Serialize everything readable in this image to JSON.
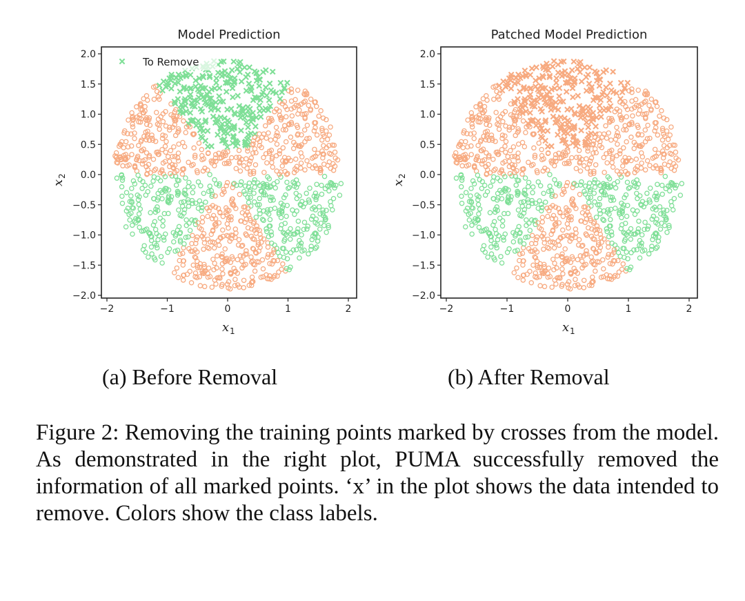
{
  "chart_data": [
    {
      "type": "scatter",
      "title": "Model Prediction",
      "xlabel": "x",
      "xlabel_sub": "1",
      "ylabel": "x",
      "ylabel_sub": "2",
      "xlim": [
        -2,
        2
      ],
      "ylim": [
        -2,
        2
      ],
      "xticks": [
        "−2",
        "−1",
        "0",
        "1",
        "2"
      ],
      "yticks": [
        "2.0",
        "1.5",
        "1.0",
        "0.5",
        "0.0",
        "−0.5",
        "−1.0",
        "−1.5",
        "−2.0"
      ],
      "legend": {
        "label": "To Remove",
        "position": "upper-left",
        "marker": "x"
      },
      "description": "Points uniformly inside a disk of radius ~1.9; class coloring by angular sectors; crosses in the top cap are the points to remove",
      "series": [
        {
          "name": "To Remove",
          "marker": "x",
          "color": "#7fdf97",
          "region": "top cap, roughly x in [-0.8, 0.9], y > 0.3 (angle 55°–130°)"
        },
        {
          "marker": "o",
          "color": "#f7aa80",
          "region": "upper sectors and bottom sector (angles 0°–55°, 130°–180°, 240°–300°)"
        },
        {
          "marker": "o",
          "color": "#7fdf97",
          "region": "lower-left and lower-right sectors (angles 180°–240°, 300°–360°)"
        }
      ]
    },
    {
      "type": "scatter",
      "title": "Patched Model Prediction",
      "xlabel": "x",
      "xlabel_sub": "1",
      "ylabel": "x",
      "ylabel_sub": "2",
      "xlim": [
        -2,
        2
      ],
      "ylim": [
        -2,
        2
      ],
      "xticks": [
        "−2",
        "−1",
        "0",
        "1",
        "2"
      ],
      "yticks": [
        "2.0",
        "1.5",
        "1.0",
        "0.5",
        "0.0",
        "−0.5",
        "−1.0",
        "−1.5",
        "−2.0"
      ],
      "description": "Same points after patching; the previously removed crosses are now predicted as the orange class",
      "series": [
        {
          "marker": "x",
          "color": "#f7aa80",
          "region": "top cap, roughly x in [-0.8, 0.9], y > 0.3 (angle 55°–130°)"
        },
        {
          "marker": "o",
          "color": "#f7aa80",
          "region": "upper sectors and bottom sector"
        },
        {
          "marker": "o",
          "color": "#7fdf97",
          "region": "lower-left and lower-right sectors"
        }
      ]
    }
  ],
  "colors": {
    "orange": "#f7aa80",
    "green": "#7fdf97",
    "axes": "#222222"
  },
  "subcaptions": {
    "a": "(a) Before Removal",
    "b": "(b) After Removal"
  },
  "caption": "Figure 2: Removing the training points marked by crosses from the model. As demonstrated in the right plot, PUMA successfully removed the information of all marked points. ‘x’ in the plot shows the data intended to remove. Colors show the class labels."
}
